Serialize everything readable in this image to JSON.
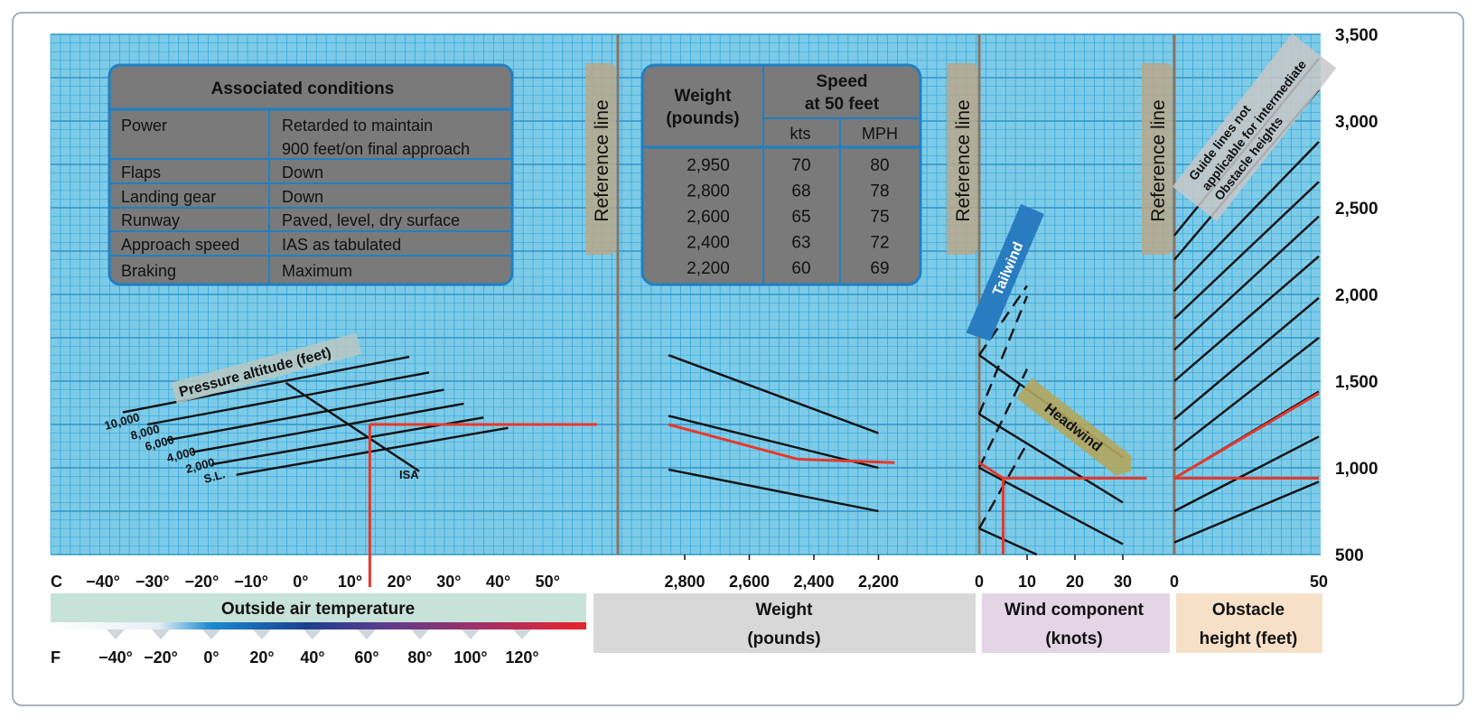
{
  "colors": {
    "grid_bg": "#7ecbe8",
    "grid_line": "#35a8dc",
    "table_fill": "#7a7a7a",
    "table_border": "#1f80c4",
    "ref_line": "#8b7464",
    "ref_label_bg": "#b8a989",
    "solution_line": "#e8372a",
    "temp_band": "#c7e2d9",
    "weight_band": "#d8d8d8",
    "wind_band": "#e3d4e6",
    "obstacle_band": "#f6e1c8",
    "tailwind": "#2a7cc0",
    "headwind": "#b4a65e"
  },
  "conditions_table": {
    "title": "Associated conditions",
    "rows": [
      [
        "Power",
        "Retarded to maintain",
        "900 feet/on final approach"
      ],
      [
        "Flaps",
        "Down",
        ""
      ],
      [
        "Landing gear",
        "Down",
        ""
      ],
      [
        "Runway",
        "Paved, level, dry surface",
        ""
      ],
      [
        "Approach speed",
        "IAS as tabulated",
        ""
      ],
      [
        "Braking",
        "Maximum",
        ""
      ]
    ]
  },
  "speed_table": {
    "weight_header": [
      "Weight",
      "(pounds)"
    ],
    "speed_header": [
      "Speed",
      "at 50 feet"
    ],
    "kts_header": "kts",
    "mph_header": "MPH",
    "rows": [
      [
        "2,950",
        "70",
        "80"
      ],
      [
        "2,800",
        "68",
        "78"
      ],
      [
        "2,600",
        "65",
        "75"
      ],
      [
        "2,400",
        "63",
        "72"
      ],
      [
        "2,200",
        "60",
        "69"
      ]
    ]
  },
  "reference_line_label": "Reference line",
  "pressure_altitude_label": "Pressure altitude (feet)",
  "altitude_labels": [
    "10,000",
    "8,000",
    "6,000",
    "4,000",
    "2,000",
    "S.L."
  ],
  "isa_label": "ISA",
  "tailwind_label": "Tailwind",
  "headwind_label": "Headwind",
  "guide_note": [
    "Guide lines not",
    "applicable for intermediate",
    "Obstacle heights"
  ],
  "y_axis_ticks": [
    "3,500",
    "3,000",
    "2,500",
    "2,000",
    "1,500",
    "1,000",
    "500"
  ],
  "celsius_prefix": "C",
  "celsius_ticks": [
    "−40°",
    "−30°",
    "−20°",
    "−10°",
    "0°",
    "10°",
    "20°",
    "30°",
    "40°",
    "50°"
  ],
  "weight_ticks": [
    "2,800",
    "2,600",
    "2,400",
    "2,200"
  ],
  "wind_ticks": [
    "0",
    "10",
    "20",
    "30"
  ],
  "obstacle_ticks": [
    "0",
    "50"
  ],
  "fahrenheit_prefix": "F",
  "fahrenheit_ticks": [
    "−40°",
    "−20°",
    "0°",
    "20°",
    "40°",
    "60°",
    "80°",
    "100°",
    "120°"
  ],
  "axis_titles": {
    "temperature": "Outside air temperature",
    "weight": [
      "Weight",
      "(pounds)"
    ],
    "wind": [
      "Wind component",
      "(knots)"
    ],
    "obstacle": [
      "Obstacle",
      "height (feet)"
    ]
  },
  "chart_data": {
    "type": "line",
    "title": "",
    "ylabel": "",
    "ylim": [
      500,
      3500
    ],
    "y_ticks": [
      500,
      1000,
      1500,
      2000,
      2500,
      3000,
      3500
    ],
    "panels": [
      {
        "name": "Outside air temperature",
        "unit": "°C",
        "xlim": [
          -50,
          60
        ]
      },
      {
        "name": "Weight (pounds)",
        "xlim": [
          2950,
          2150
        ],
        "reversed": true
      },
      {
        "name": "Wind component (knots)",
        "xlim": [
          0,
          35
        ]
      },
      {
        "name": "Obstacle height (feet)",
        "xlim": [
          0,
          50
        ]
      }
    ],
    "temperature_panel": {
      "altitude_lines": [
        {
          "altitude": "10,000",
          "points": [
            [
              -36,
              1320
            ],
            [
              22,
              1640
            ]
          ]
        },
        {
          "altitude": "8,000",
          "points": [
            [
              -31,
              1250
            ],
            [
              26,
              1550
            ]
          ]
        },
        {
          "altitude": "6,000",
          "points": [
            [
              -27,
              1160
            ],
            [
              29,
              1450
            ]
          ]
        },
        {
          "altitude": "4,000",
          "points": [
            [
              -22,
              1090
            ],
            [
              33,
              1370
            ]
          ]
        },
        {
          "altitude": "2,000",
          "points": [
            [
              -18,
              1020
            ],
            [
              37,
              1290
            ]
          ]
        },
        {
          "altitude": "S.L.",
          "points": [
            [
              -13,
              960
            ],
            [
              42,
              1230
            ]
          ]
        }
      ],
      "isa_line": [
        [
          -3,
          1490
        ],
        [
          24,
          980
        ]
      ]
    },
    "weight_panel": {
      "guide_lines": [
        [
          [
            2850,
            1650
          ],
          [
            2200,
            1200
          ]
        ],
        [
          [
            2850,
            1300
          ],
          [
            2200,
            1000
          ]
        ],
        [
          [
            2850,
            990
          ],
          [
            2200,
            750
          ]
        ]
      ]
    },
    "wind_panel": {
      "headwind_lines": [
        [
          [
            0,
            1650
          ],
          [
            30,
            1060
          ]
        ],
        [
          [
            0,
            1310
          ],
          [
            30,
            800
          ]
        ],
        [
          [
            0,
            1000
          ],
          [
            30,
            560
          ]
        ],
        [
          [
            0,
            650
          ],
          [
            12,
            500
          ]
        ]
      ],
      "tailwind_lines": [
        [
          [
            0,
            1650
          ],
          [
            10,
            2050
          ]
        ],
        [
          [
            0,
            1310
          ],
          [
            10,
            1990
          ]
        ],
        [
          [
            0,
            1000
          ],
          [
            10,
            1570
          ]
        ],
        [
          [
            0,
            650
          ],
          [
            10,
            1140
          ]
        ]
      ]
    },
    "obstacle_panel": {
      "guide_lines": [
        [
          [
            0,
            2340
          ],
          [
            50,
            3360
          ]
        ],
        [
          [
            0,
            2200
          ],
          [
            50,
            3180
          ]
        ],
        [
          [
            0,
            2020
          ],
          [
            50,
            2880
          ]
        ],
        [
          [
            0,
            1860
          ],
          [
            50,
            2650
          ]
        ],
        [
          [
            0,
            1680
          ],
          [
            50,
            2450
          ]
        ],
        [
          [
            0,
            1500
          ],
          [
            50,
            2220
          ]
        ],
        [
          [
            0,
            1280
          ],
          [
            50,
            1980
          ]
        ],
        [
          [
            0,
            1100
          ],
          [
            50,
            1750
          ]
        ],
        [
          [
            0,
            940
          ],
          [
            50,
            1440
          ]
        ],
        [
          [
            0,
            750
          ],
          [
            50,
            1180
          ]
        ],
        [
          [
            0,
            570
          ],
          [
            50,
            920
          ]
        ]
      ]
    },
    "example_solution": [
      {
        "panel": "temperature",
        "points": [
          [
            14,
            500
          ],
          [
            14,
            1250
          ]
        ]
      },
      {
        "panel": "temperature",
        "points": [
          [
            14,
            1250
          ],
          [
            60,
            1250
          ]
        ]
      },
      {
        "panel": "weight",
        "points": [
          [
            2850,
            1250
          ],
          [
            2450,
            1050
          ],
          [
            2150,
            1030
          ]
        ]
      },
      {
        "panel": "wind",
        "points": [
          [
            0,
            1030
          ],
          [
            5,
            940
          ],
          [
            5,
            500
          ]
        ]
      },
      {
        "panel": "wind",
        "points": [
          [
            5,
            940
          ],
          [
            35,
            940
          ]
        ]
      },
      {
        "panel": "obstacle",
        "points": [
          [
            0,
            940
          ],
          [
            50,
            1430
          ]
        ]
      },
      {
        "panel": "obstacle",
        "points": [
          [
            0,
            940
          ],
          [
            50,
            940
          ]
        ]
      }
    ]
  }
}
